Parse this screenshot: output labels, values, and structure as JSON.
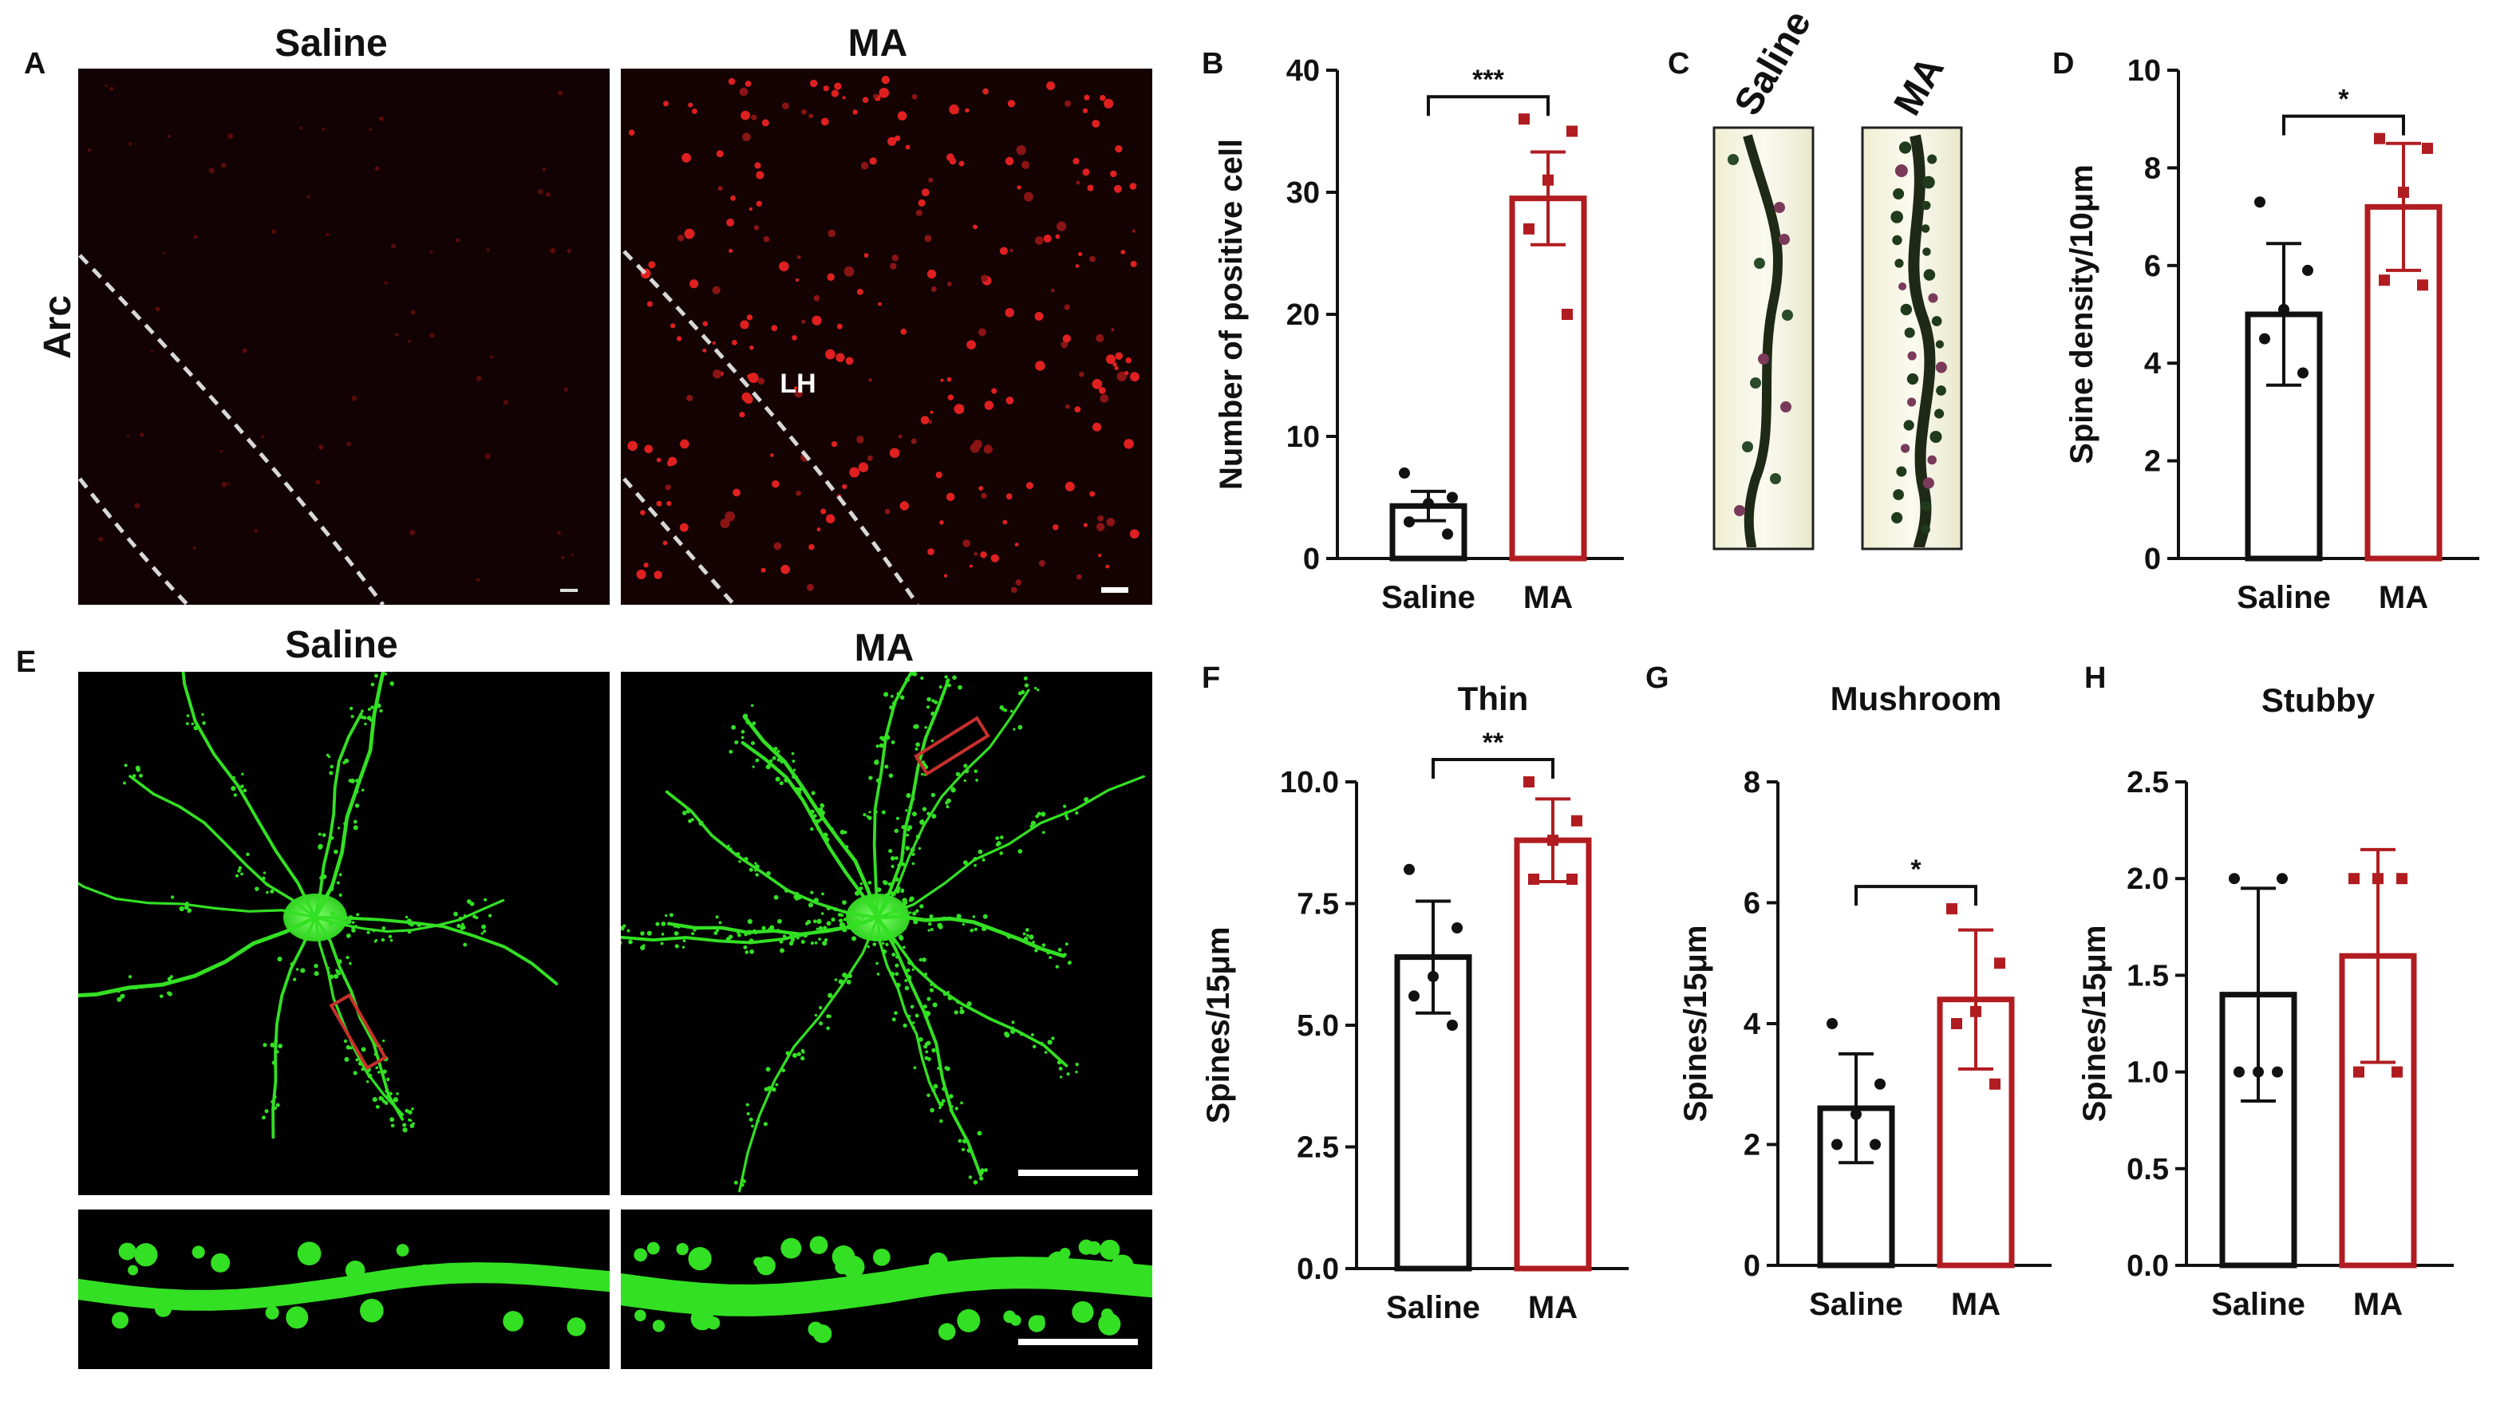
{
  "colors": {
    "saline": "#111111",
    "ma": "#b01c20",
    "green": "#33e023",
    "red_signal": "#e02020"
  },
  "panels": {
    "A": {
      "letter": "A",
      "left_label": "Saline",
      "right_label": "MA",
      "side_label": "Arc",
      "region_label": "LH"
    },
    "C": {
      "letter": "C",
      "left_label": "Saline",
      "right_label": "MA"
    },
    "E": {
      "letter": "E",
      "left_label": "Saline",
      "right_label": "MA"
    }
  },
  "chart_data": [
    {
      "id": "B",
      "letter": "B",
      "type": "bar",
      "title": "",
      "ylabel": "Number of positive cell",
      "xlabel": "",
      "ylim": [
        0,
        40
      ],
      "yticks": [
        "0",
        "10",
        "20",
        "30",
        "40"
      ],
      "categories": [
        "Saline",
        "MA"
      ],
      "means": [
        4.3,
        29.5
      ],
      "errors": [
        1.2,
        3.8
      ],
      "points": [
        [
          7.0,
          5.0,
          4.5,
          3.0,
          2.0
        ],
        [
          36.0,
          35.0,
          31.0,
          27.0,
          20.0
        ]
      ],
      "significance": "***"
    },
    {
      "id": "D",
      "letter": "D",
      "type": "bar",
      "title": "",
      "ylabel": "Spine density/10μm",
      "xlabel": "",
      "ylim": [
        0,
        10
      ],
      "yticks": [
        "0",
        "2",
        "4",
        "6",
        "8",
        "10"
      ],
      "categories": [
        "Saline",
        "MA"
      ],
      "means": [
        5.0,
        7.2
      ],
      "errors": [
        1.45,
        1.3
      ],
      "points": [
        [
          7.3,
          5.9,
          5.1,
          4.5,
          3.8
        ],
        [
          8.6,
          8.4,
          7.5,
          5.7,
          5.6
        ]
      ],
      "significance": "*"
    },
    {
      "id": "F",
      "letter": "F",
      "type": "bar",
      "title": "Thin",
      "ylabel": "Spines/15μm",
      "xlabel": "",
      "ylim": [
        0,
        10
      ],
      "yticks": [
        "0.0",
        "2.5",
        "5.0",
        "7.5",
        "10.0"
      ],
      "categories": [
        "Saline",
        "MA"
      ],
      "means": [
        6.4,
        8.8
      ],
      "errors": [
        1.15,
        0.85
      ],
      "points": [
        [
          8.2,
          7.0,
          6.0,
          5.6,
          5.0
        ],
        [
          10.0,
          9.2,
          8.8,
          8.0,
          8.0
        ]
      ],
      "significance": "**"
    },
    {
      "id": "G",
      "letter": "G",
      "type": "bar",
      "title": "Mushroom",
      "ylabel": "Spines/15μm",
      "xlabel": "",
      "ylim": [
        0,
        8
      ],
      "yticks": [
        "0",
        "2",
        "4",
        "6",
        "8"
      ],
      "categories": [
        "Saline",
        "MA"
      ],
      "means": [
        2.6,
        4.4
      ],
      "errors": [
        0.9,
        1.15
      ],
      "points": [
        [
          4.0,
          3.0,
          2.5,
          2.0,
          2.0
        ],
        [
          5.9,
          5.0,
          4.2,
          4.0,
          3.0
        ]
      ],
      "significance": "*"
    },
    {
      "id": "H",
      "letter": "H",
      "type": "bar",
      "title": "Stubby",
      "ylabel": "Spines/15μm",
      "xlabel": "",
      "ylim": [
        0,
        2.5
      ],
      "yticks": [
        "0.0",
        "0.5",
        "1.0",
        "1.5",
        "2.0",
        "2.5"
      ],
      "categories": [
        "Saline",
        "MA"
      ],
      "means": [
        1.4,
        1.6
      ],
      "errors": [
        0.55,
        0.55
      ],
      "points": [
        [
          2.0,
          2.0,
          1.0,
          1.0,
          1.0
        ],
        [
          2.0,
          2.0,
          2.0,
          1.0,
          1.0
        ]
      ],
      "significance": ""
    }
  ]
}
